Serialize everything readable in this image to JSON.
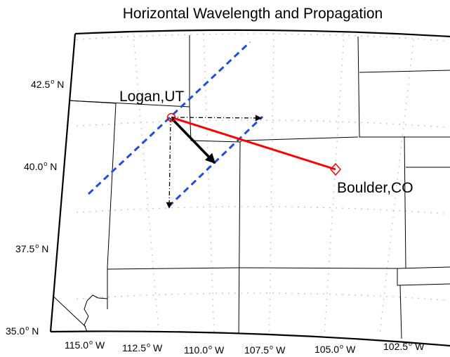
{
  "title": "Horizontal Wavelength and Propagation",
  "lat_ticks": [
    {
      "value": "42.5",
      "hemi": "N"
    },
    {
      "value": "40.0",
      "hemi": "N"
    },
    {
      "value": "37.5",
      "hemi": "N"
    },
    {
      "value": "35.0",
      "hemi": "N"
    }
  ],
  "lon_ticks": [
    {
      "value": "115.0",
      "hemi": "W"
    },
    {
      "value": "112.5",
      "hemi": "W"
    },
    {
      "value": "110.0",
      "hemi": "W"
    },
    {
      "value": "107.5",
      "hemi": "W"
    },
    {
      "value": "105.0",
      "hemi": "W"
    },
    {
      "value": "102.5",
      "hemi": "W"
    }
  ],
  "degree_symbol": "o",
  "places": {
    "logan": {
      "label": "Logan,UT",
      "marker": "circle",
      "color": "#ff0000"
    },
    "boulder": {
      "label": "Boulder,CO",
      "marker": "diamond",
      "color": "#ff0000"
    }
  },
  "colors": {
    "wavefront": "#1f4fe0",
    "path": "#ff0000",
    "arrows": "#000000",
    "states": "#000000",
    "graticule": "#b0b0b0"
  }
}
